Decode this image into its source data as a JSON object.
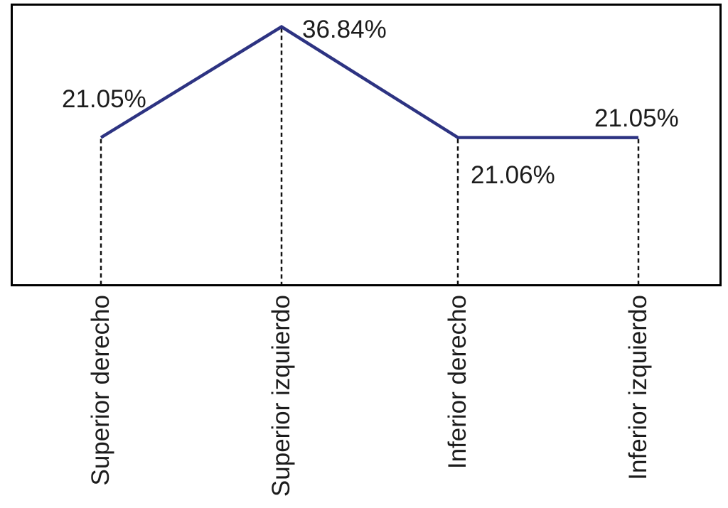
{
  "chart_data": {
    "type": "line",
    "categories": [
      "Superior derecho",
      "Superior izquierdo",
      "Inferior derecho",
      "Inferior izquierdo"
    ],
    "values": [
      21.05,
      36.84,
      21.06,
      21.05
    ],
    "point_labels": [
      "21.05%",
      "36.84%",
      "21.06%",
      "21.05%"
    ],
    "title": "",
    "xlabel": "",
    "ylabel": "",
    "ylim": [
      0,
      40
    ],
    "grid": false,
    "legend_position": "none",
    "guide_style": "dashed",
    "line_color": "#2d3382",
    "text_color": "#1c1c1c",
    "frame_color": "#000000",
    "guide_color": "#111111"
  }
}
